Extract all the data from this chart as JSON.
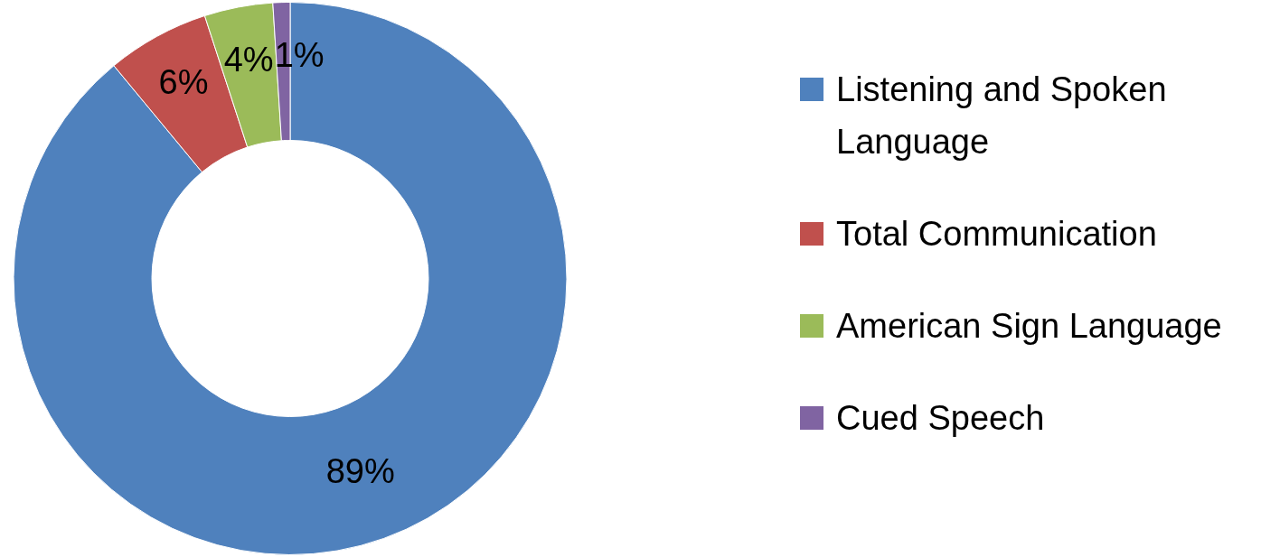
{
  "chart_data": {
    "type": "donut",
    "categories": [
      "Listening and Spoken Language",
      "Total Communication",
      "American Sign Language",
      "Cued Speech"
    ],
    "values": [
      89,
      6,
      4,
      1
    ],
    "colors": [
      "#4f81bd",
      "#c0504d",
      "#9bbb59",
      "#8064a2"
    ],
    "value_labels": [
      "89%",
      "6%",
      "4%",
      "1%"
    ],
    "legend": "right"
  }
}
